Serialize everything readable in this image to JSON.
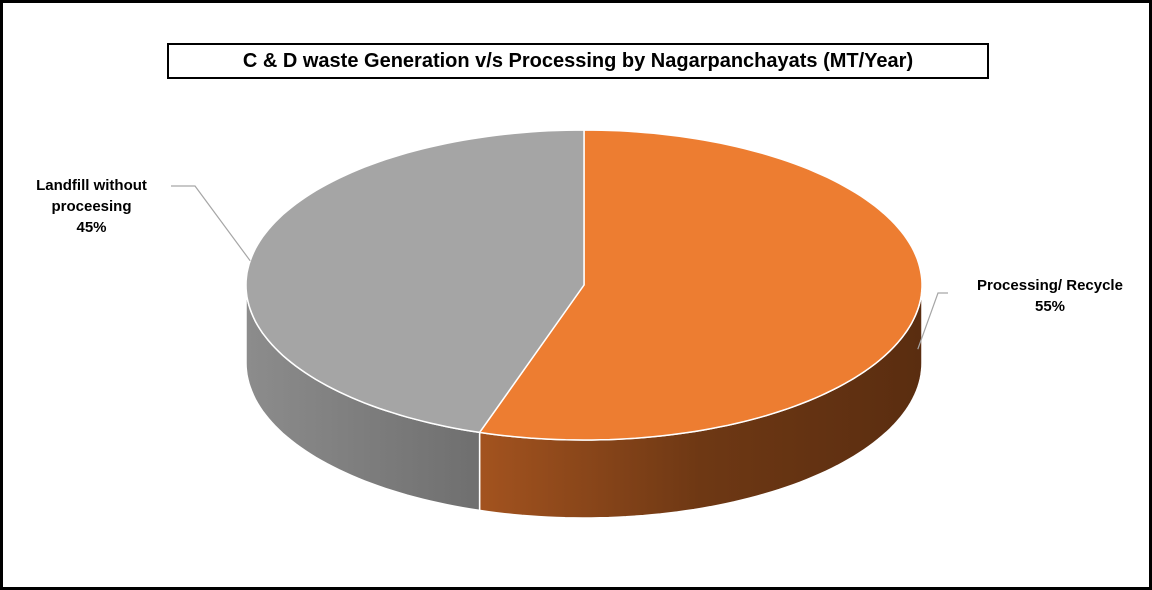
{
  "chart_data": {
    "type": "pie",
    "title": "C & D waste Generation v/s Processing by  Nagarpanchayats (MT/Year)",
    "categories": [
      "Processing/ Recycle",
      "Landfill without proceesing"
    ],
    "values": [
      55,
      45
    ],
    "value_labels": [
      "55%",
      "45%"
    ],
    "colors": [
      "#ed7d31",
      "#a5a5a5"
    ]
  }
}
